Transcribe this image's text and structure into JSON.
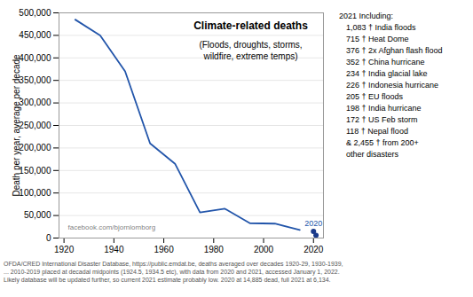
{
  "chart_data": {
    "type": "line",
    "title": "Climate-related deaths",
    "subtitle": "(Floods, droughts, storms,\nwildfire, extreme temps)",
    "y_label": "Death per year, average per decade",
    "series": [
      {
        "type": "line",
        "color": "#2255aa",
        "x": [
          1924.5,
          1934.5,
          1944.5,
          1954.5,
          1964.5,
          1974.5,
          1984.5,
          1994.5,
          2004.5,
          2014.5
        ],
        "values": [
          485000,
          450000,
          370000,
          210000,
          165000,
          57000,
          65000,
          33000,
          32000,
          18000
        ]
      },
      {
        "type": "scatter",
        "color": "#1a3a8a",
        "marker": "o",
        "x": [
          2020,
          2021
        ],
        "values": [
          14885,
          6134
        ]
      }
    ],
    "annotations": [
      {
        "text": "2020",
        "x": 2020,
        "y": 14885
      }
    ],
    "watermark": "facebook.com/bjornlomborg",
    "side_text": {
      "title": "2021 Including:",
      "lines": [
        "1,083 † India floods",
        "715 † Heat Dome",
        "376 † 2x Afghan flash flood",
        "352 † China hurricane",
        "234 † India glacial lake",
        "226 † Indonesia hurricane",
        "205 † EU floods",
        "198 † India hurricane",
        "172 † US Feb storm",
        "118 † Nepal flood",
        "& 2,455 † from 200+",
        "other disasters"
      ]
    },
    "footnote": "OFDA/CRED International Disaster Database, https://public.emdat.be, deaths averaged over decades 1920-29, 1930-1939,\n... 2010-2019 placed at decadal midpoints (1924.5, 1934.5 etc), with data from 2020 and 2021, accessed January 1, 2022.\nLikely database will be updated further, so current 2021 estimate probably low. 2020 at 14,885 dead, full 2021 at 6,134.",
    "xlim": [
      1918,
      2024
    ],
    "xticks": [
      1920,
      1940,
      1960,
      1980,
      2000,
      2020
    ],
    "ylim": [
      0,
      500000
    ],
    "yticks": [
      0,
      {
        "value": 50000,
        "label": "50,000"
      },
      {
        "value": 100000,
        "label": "100,000"
      },
      {
        "value": 150000,
        "label": "150,000"
      },
      {
        "value": 200000,
        "label": "200,000"
      },
      {
        "value": 250000,
        "label": "250,000"
      },
      {
        "value": 300000,
        "label": "300,000"
      },
      {
        "value": 350000,
        "label": "350,000"
      },
      {
        "value": 400000,
        "label": "400,000"
      },
      {
        "value": 450000,
        "label": "450,000"
      },
      {
        "value": 500000,
        "label": "500,000"
      }
    ],
    "grid": true
  }
}
